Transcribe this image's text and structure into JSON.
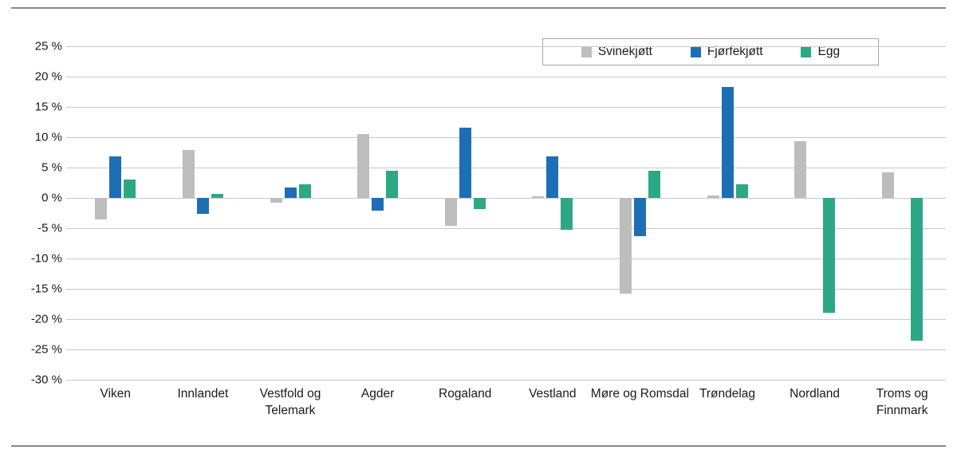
{
  "chart_data": {
    "type": "bar",
    "title": "",
    "categories": [
      "Viken",
      "Innlandet",
      "Vestfold og Telemark",
      "Agder",
      "Rogaland",
      "Vestland",
      "Møre og Romsdal",
      "Trøndelag",
      "Nordland",
      "Troms og Finnmark"
    ],
    "series": [
      {
        "name": "Svinekjøtt",
        "color": "#bdbdbd",
        "values": [
          -3.6,
          7.9,
          -0.8,
          10.5,
          -4.6,
          0.3,
          -15.8,
          0.4,
          9.3,
          4.2
        ]
      },
      {
        "name": "Fjørfekjøtt",
        "color": "#1d6fb5",
        "values": [
          6.8,
          -2.6,
          1.7,
          -2.1,
          11.6,
          6.8,
          -6.3,
          18.3,
          0,
          0
        ]
      },
      {
        "name": "Egg",
        "color": "#2ca884",
        "values": [
          3.0,
          0.7,
          2.2,
          4.5,
          -1.8,
          -5.3,
          4.5,
          2.2,
          -18.9,
          -23.6
        ]
      }
    ],
    "ylim": [
      -30,
      25
    ],
    "ytick_step": 5,
    "yticks": [
      "25 %",
      "20 %",
      "15 %",
      "10 %",
      "5 %",
      "0 %",
      "-5 %",
      "-10 %",
      "-15 %",
      "-20 %",
      "-25 %",
      "-30 %"
    ],
    "xlabel": "",
    "ylabel": "",
    "grid": true,
    "legend_position": "top-right"
  }
}
